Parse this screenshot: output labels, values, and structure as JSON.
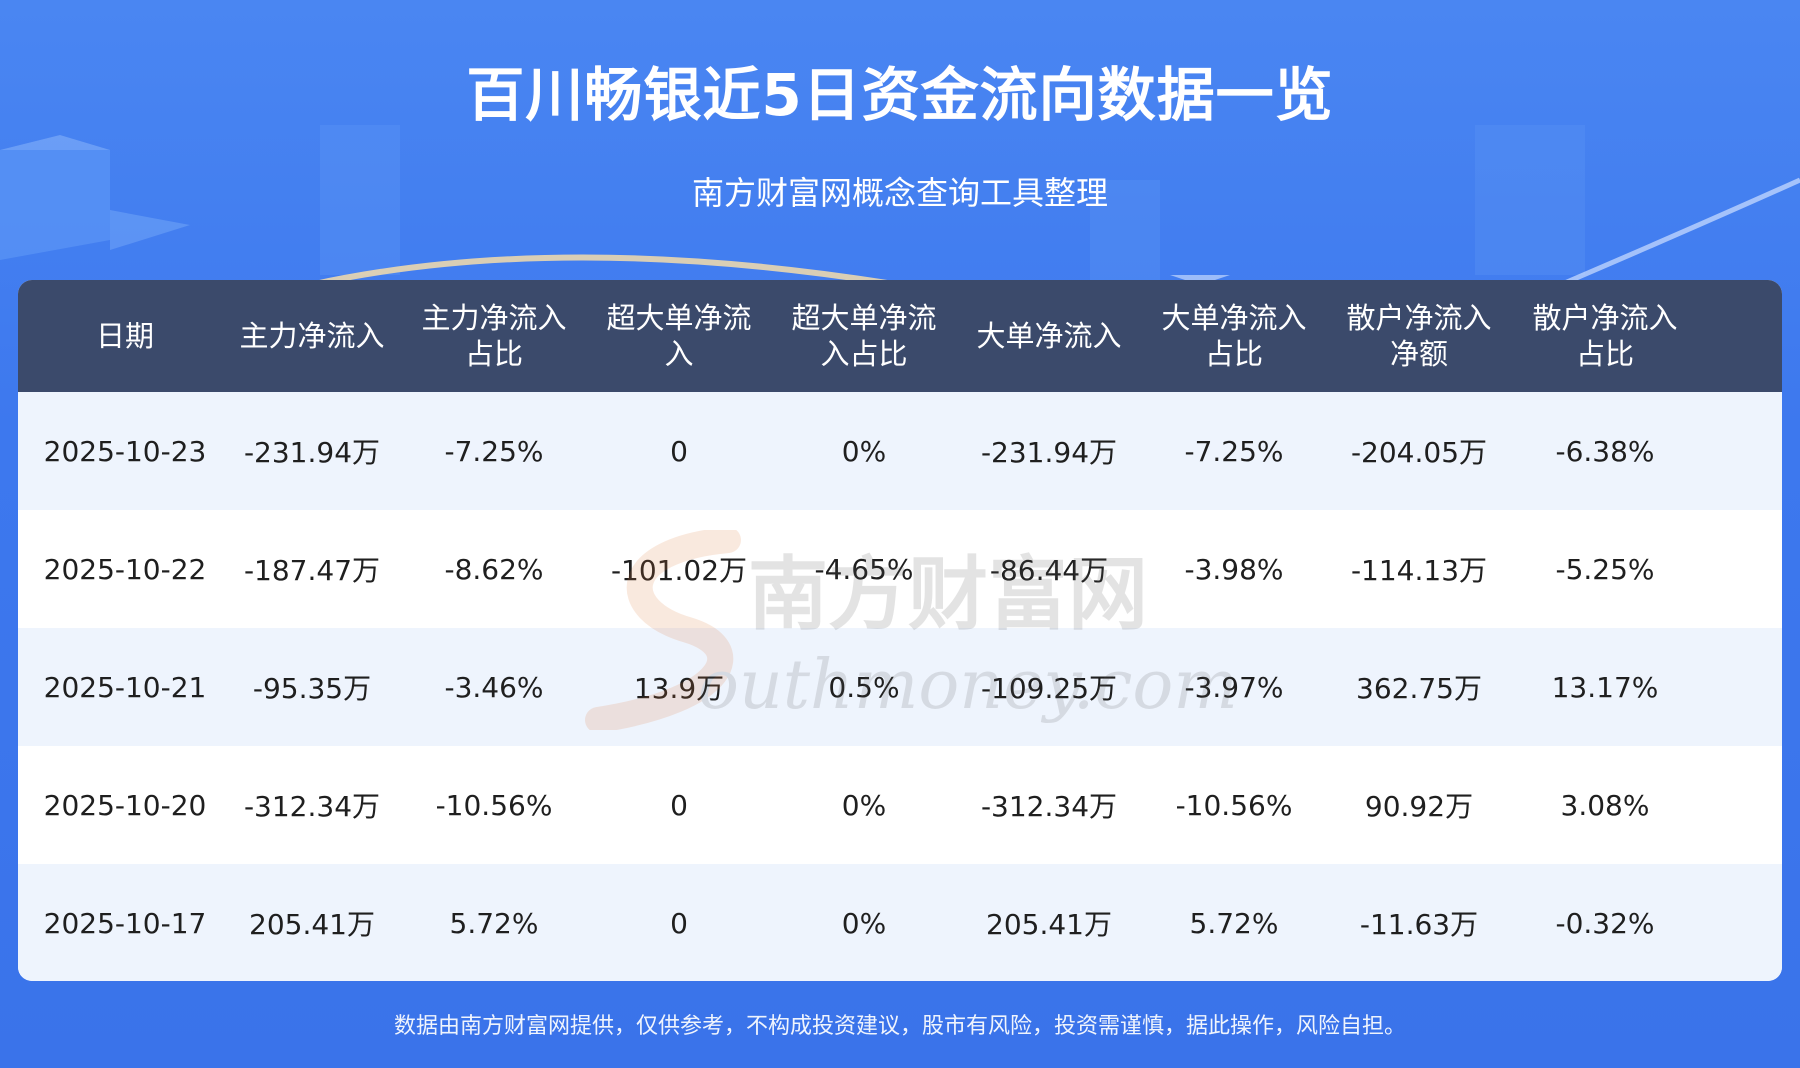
{
  "header": {
    "title": "百川畅银近5日资金流向数据一览",
    "subtitle": "南方财富网概念查询工具整理"
  },
  "table": {
    "columns": [
      "日期",
      "主力净流入",
      "主力净流入\n占比",
      "超大单净流\n入",
      "超大单净流\n入占比",
      "大单净流入",
      "大单净流入\n占比",
      "散户净流入\n净额",
      "散户净流入\n占比"
    ],
    "rows": [
      [
        "2025-10-23",
        "-231.94万",
        "-7.25%",
        "0",
        "0%",
        "-231.94万",
        "-7.25%",
        "-204.05万",
        "-6.38%"
      ],
      [
        "2025-10-22",
        "-187.47万",
        "-8.62%",
        "-101.02万",
        "-4.65%",
        "-86.44万",
        "-3.98%",
        "-114.13万",
        "-5.25%"
      ],
      [
        "2025-10-21",
        "-95.35万",
        "-3.46%",
        "13.9万",
        "0.5%",
        "-109.25万",
        "-3.97%",
        "362.75万",
        "13.17%"
      ],
      [
        "2025-10-20",
        "-312.34万",
        "-10.56%",
        "0",
        "0%",
        "-312.34万",
        "-10.56%",
        "90.92万",
        "3.08%"
      ],
      [
        "2025-10-17",
        "205.41万",
        "5.72%",
        "0",
        "0%",
        "205.41万",
        "5.72%",
        "-11.63万",
        "-0.32%"
      ]
    ]
  },
  "watermark": {
    "line1": "南方财富网",
    "line2": "outhmoney.com"
  },
  "footer": {
    "disclaimer": "数据由南方财富网提供，仅供参考，不构成投资建议，股市有风险，投资需谨慎，据此操作，风险自担。"
  },
  "colors": {
    "background": "#3d78ee",
    "header_row": "#3b4a6b",
    "row_odd": "#eef4fd",
    "row_even": "#ffffff",
    "watermark_accent": "#e07a3a"
  }
}
